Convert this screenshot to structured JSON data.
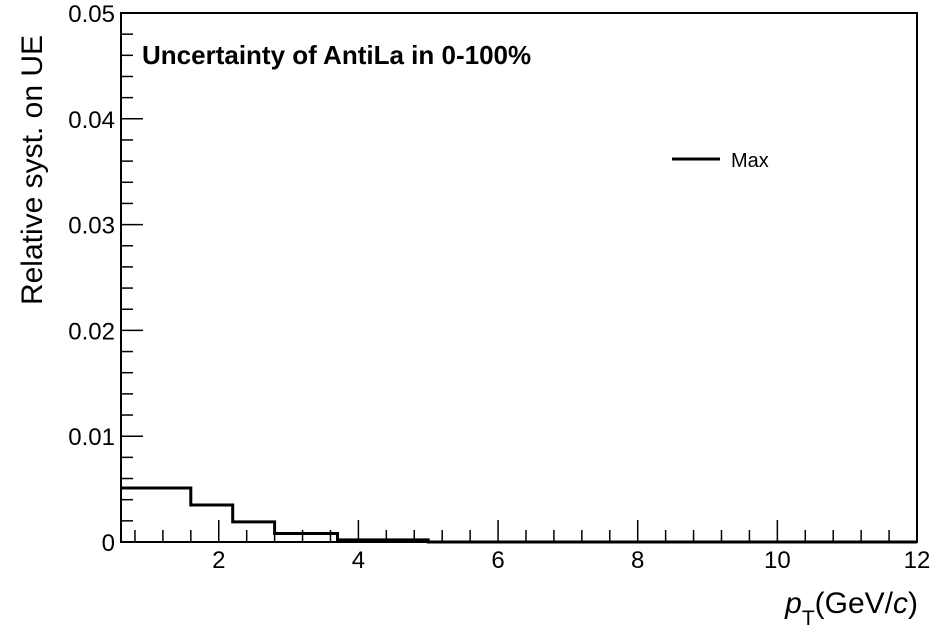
{
  "chart_data": {
    "type": "line",
    "style": "step-histogram",
    "title": "Uncertainty of AntiLa in 0-100%",
    "xlabel": {
      "symbol": "p",
      "subscript": "T",
      "unit_prefix": "(GeV/",
      "unit_italic": "c",
      "unit_suffix": ")"
    },
    "ylabel": "Relative syst. on UE",
    "xlim": [
      0.6,
      12
    ],
    "ylim": [
      0,
      0.05
    ],
    "x_ticks": [
      2,
      4,
      6,
      8,
      10,
      12
    ],
    "y_ticks": [
      {
        "value": 0,
        "label": "0"
      },
      {
        "value": 0.01,
        "label": "0.01"
      },
      {
        "value": 0.02,
        "label": "0.02"
      },
      {
        "value": 0.03,
        "label": "0.03"
      },
      {
        "value": 0.04,
        "label": "0.04"
      },
      {
        "value": 0.05,
        "label": "0.05"
      }
    ],
    "legend_position": "top-right",
    "series": [
      {
        "name": "Max",
        "color": "#000000",
        "bin_edges": [
          0.6,
          1.6,
          2.2,
          2.8,
          3.7,
          5.0,
          12.0
        ],
        "values": [
          0.0051,
          0.0035,
          0.0019,
          0.0008,
          0.0002,
          0.0
        ]
      }
    ]
  }
}
